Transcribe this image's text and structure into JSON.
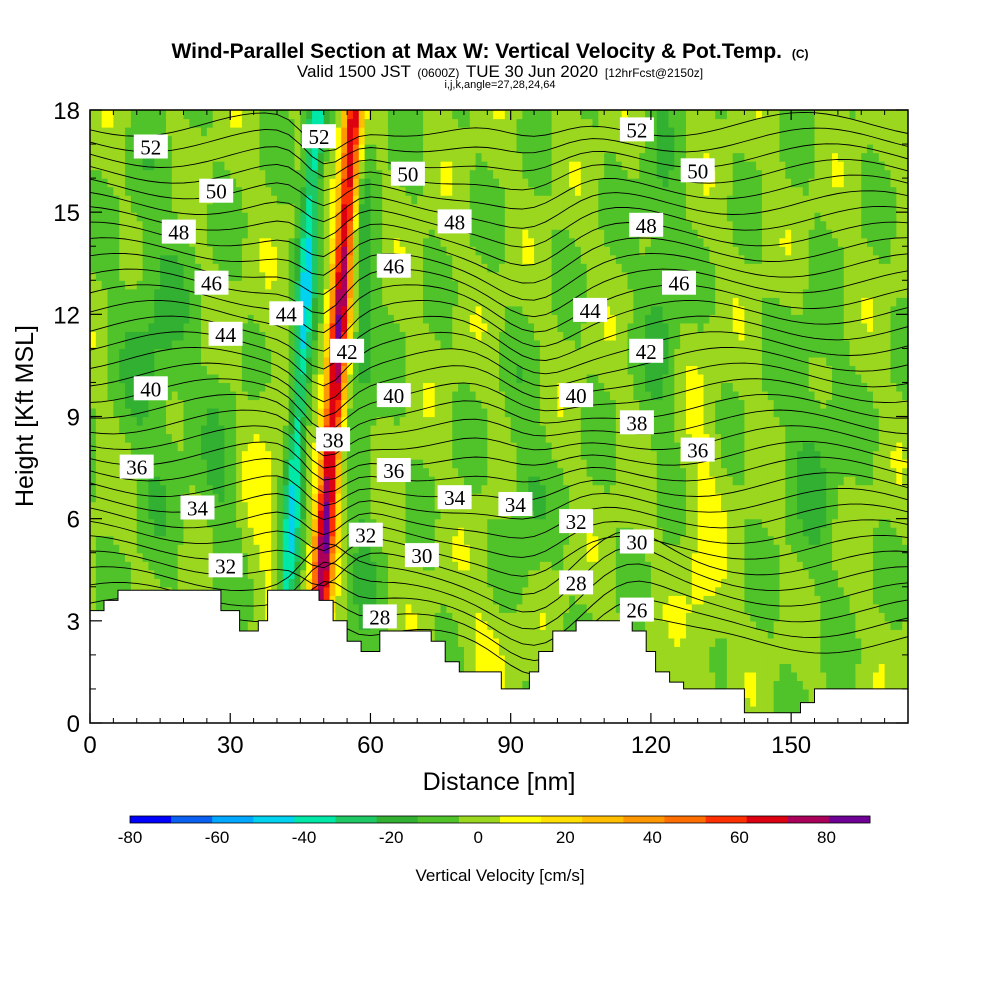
{
  "chart_data": {
    "type": "heatmap",
    "title": "Wind-Parallel Section at Max W: Vertical Velocity & Pot.Temp.",
    "title_mark": "(C)",
    "subtitle_a": "Valid 1500 JST",
    "subtitle_b": "(0600Z)",
    "subtitle_c": "TUE 30 Jun 2020",
    "subtitle_d": "[12hrFcst@2150z]",
    "subtitle_e": "i,j,k,angle=27,28,24,64",
    "xlabel": "Distance [nm]",
    "ylabel": "Height [Kft MSL]",
    "xlim": [
      0,
      175
    ],
    "ylim": [
      0,
      18
    ],
    "xticks": [
      0,
      30,
      60,
      90,
      120,
      150
    ],
    "yticks": [
      0,
      3,
      6,
      9,
      12,
      15,
      18
    ],
    "colorbar": {
      "label": "Vertical Velocity [cm/s]",
      "min": -80,
      "max": 90,
      "step": 10,
      "tick_values": [
        -80,
        -60,
        -40,
        -20,
        0,
        20,
        40,
        60,
        80
      ],
      "colors": [
        "#0000ff",
        "#0a60f0",
        "#00a8ff",
        "#00d2f0",
        "#00e8a8",
        "#1ec864",
        "#32b032",
        "#50c22a",
        "#9ad71e",
        "#ffff00",
        "#ffe000",
        "#ffbe00",
        "#ff9800",
        "#ff6e00",
        "#ff3000",
        "#dc0010",
        "#aa005a",
        "#6e0096"
      ]
    },
    "theta_levels": [
      26,
      28,
      30,
      32,
      34,
      36,
      38,
      40,
      42,
      44,
      46,
      48,
      50,
      52
    ],
    "contour_labels": [
      {
        "t": "52",
        "x": 13,
        "y": 16.9
      },
      {
        "t": "50",
        "x": 27,
        "y": 15.6
      },
      {
        "t": "48",
        "x": 19,
        "y": 14.4
      },
      {
        "t": "46",
        "x": 26,
        "y": 12.9
      },
      {
        "t": "44",
        "x": 29,
        "y": 11.4
      },
      {
        "t": "40",
        "x": 13,
        "y": 9.8
      },
      {
        "t": "36",
        "x": 10,
        "y": 7.5
      },
      {
        "t": "34",
        "x": 23,
        "y": 6.3
      },
      {
        "t": "32",
        "x": 29,
        "y": 4.6
      },
      {
        "t": "52",
        "x": 49,
        "y": 17.2
      },
      {
        "t": "44",
        "x": 42,
        "y": 12.0
      },
      {
        "t": "42",
        "x": 55,
        "y": 10.9
      },
      {
        "t": "38",
        "x": 52,
        "y": 8.3
      },
      {
        "t": "50",
        "x": 68,
        "y": 16.1
      },
      {
        "t": "48",
        "x": 78,
        "y": 14.7
      },
      {
        "t": "46",
        "x": 65,
        "y": 13.4
      },
      {
        "t": "40",
        "x": 65,
        "y": 9.6
      },
      {
        "t": "36",
        "x": 65,
        "y": 7.4
      },
      {
        "t": "34",
        "x": 78,
        "y": 6.6
      },
      {
        "t": "34",
        "x": 91,
        "y": 6.4
      },
      {
        "t": "32",
        "x": 59,
        "y": 5.5
      },
      {
        "t": "30",
        "x": 71,
        "y": 4.9
      },
      {
        "t": "28",
        "x": 62,
        "y": 3.1
      },
      {
        "t": "44",
        "x": 107,
        "y": 12.1
      },
      {
        "t": "40",
        "x": 104,
        "y": 9.6
      },
      {
        "t": "32",
        "x": 104,
        "y": 5.9
      },
      {
        "t": "28",
        "x": 104,
        "y": 4.1
      },
      {
        "t": "52",
        "x": 117,
        "y": 17.4
      },
      {
        "t": "50",
        "x": 130,
        "y": 16.2
      },
      {
        "t": "48",
        "x": 119,
        "y": 14.6
      },
      {
        "t": "46",
        "x": 126,
        "y": 12.9
      },
      {
        "t": "42",
        "x": 119,
        "y": 10.9
      },
      {
        "t": "38",
        "x": 117,
        "y": 8.8
      },
      {
        "t": "36",
        "x": 130,
        "y": 8.0
      },
      {
        "t": "30",
        "x": 117,
        "y": 5.3
      },
      {
        "t": "26",
        "x": 117,
        "y": 3.3
      }
    ],
    "terrain_profile": [
      [
        0,
        3.3
      ],
      [
        3,
        3.6
      ],
      [
        6,
        3.9
      ],
      [
        9,
        3.9
      ],
      [
        14,
        3.9
      ],
      [
        20,
        3.9
      ],
      [
        25,
        3.9
      ],
      [
        28,
        3.3
      ],
      [
        30,
        3.3
      ],
      [
        32,
        2.7
      ],
      [
        36,
        3.0
      ],
      [
        38,
        3.9
      ],
      [
        42,
        3.9
      ],
      [
        46,
        3.9
      ],
      [
        49,
        3.6
      ],
      [
        52,
        3.0
      ],
      [
        55,
        2.4
      ],
      [
        58,
        2.1
      ],
      [
        61,
        2.1
      ],
      [
        62,
        2.7
      ],
      [
        70,
        2.7
      ],
      [
        73,
        2.4
      ],
      [
        76,
        1.8
      ],
      [
        79,
        1.5
      ],
      [
        83,
        1.5
      ],
      [
        85,
        1.5
      ],
      [
        88,
        1.0
      ],
      [
        91,
        1.0
      ],
      [
        94,
        1.5
      ],
      [
        96,
        2.1
      ],
      [
        99,
        2.7
      ],
      [
        104,
        3.0
      ],
      [
        110,
        3.0
      ],
      [
        116,
        2.7
      ],
      [
        119,
        2.1
      ],
      [
        121,
        1.5
      ],
      [
        124,
        1.2
      ],
      [
        127,
        1.0
      ],
      [
        132,
        1.0
      ],
      [
        138,
        1.0
      ],
      [
        140,
        0.3
      ],
      [
        145,
        0.3
      ],
      [
        149,
        0.3
      ],
      [
        152,
        0.6
      ],
      [
        155,
        1.0
      ],
      [
        165,
        1.0
      ],
      [
        175,
        1.0
      ]
    ]
  }
}
